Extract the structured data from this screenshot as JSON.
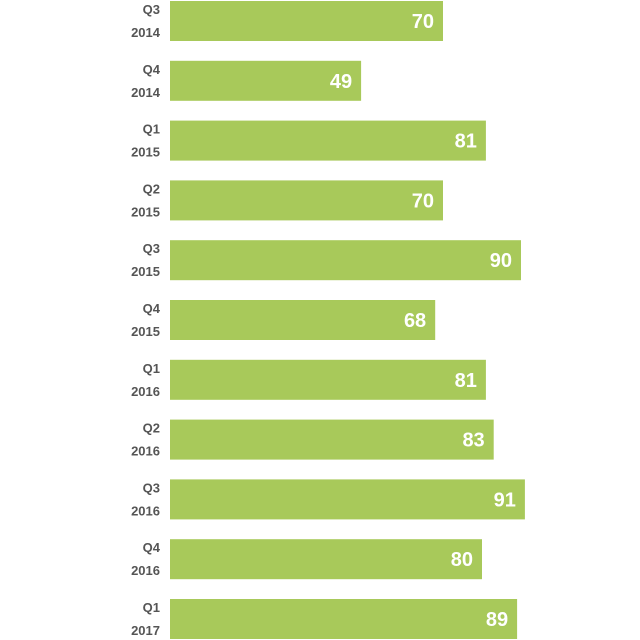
{
  "chart_data": {
    "type": "bar",
    "orientation": "horizontal",
    "categories": [
      [
        "Q3",
        "2014"
      ],
      [
        "Q4",
        "2014"
      ],
      [
        "Q1",
        "2015"
      ],
      [
        "Q2",
        "2015"
      ],
      [
        "Q3",
        "2015"
      ],
      [
        "Q4",
        "2015"
      ],
      [
        "Q1",
        "2016"
      ],
      [
        "Q2",
        "2016"
      ],
      [
        "Q3",
        "2016"
      ],
      [
        "Q4",
        "2016"
      ],
      [
        "Q1",
        "2017"
      ]
    ],
    "values": [
      70,
      49,
      81,
      70,
      90,
      68,
      81,
      83,
      91,
      80,
      89
    ],
    "title": "",
    "xlabel": "",
    "ylabel": "",
    "xlim": [
      0,
      100
    ],
    "grid": false,
    "legend": "none",
    "bar_color": "#a8c95a",
    "value_label_color": "#ffffff",
    "category_label_color": "#555555"
  }
}
